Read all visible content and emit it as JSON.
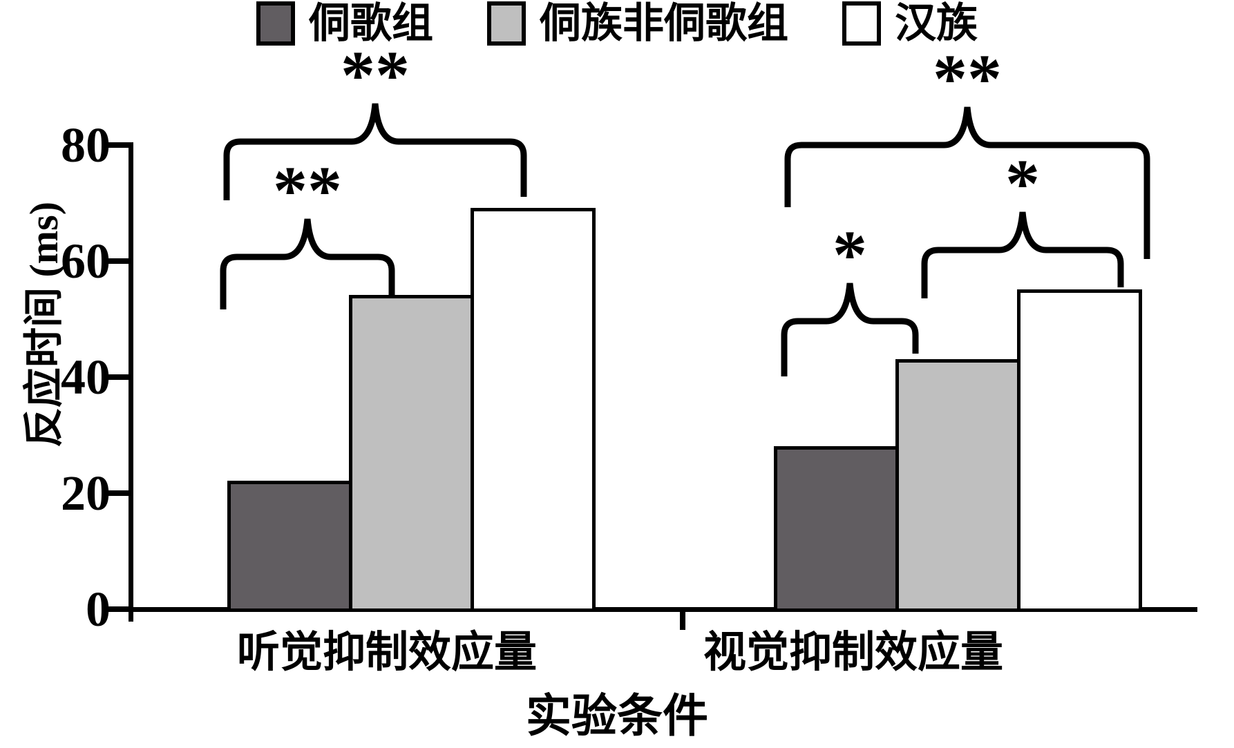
{
  "chart_data": {
    "type": "bar",
    "categories": [
      "听觉抑制效应量",
      "视觉抑制效应量"
    ],
    "series": [
      {
        "name": "侗歌组",
        "color": "#615D61",
        "values": [
          22,
          28
        ]
      },
      {
        "name": "侗族非侗歌组",
        "color": "#BFBFBF",
        "values": [
          54,
          43
        ]
      },
      {
        "name": "汉族",
        "color": "#FFFFFF",
        "values": [
          69,
          55
        ]
      }
    ],
    "xlabel": "实验条件",
    "ylabel": "反应时间 (ms)",
    "ylim": [
      0,
      80
    ],
    "yticks": [
      0,
      20,
      40,
      60,
      80
    ],
    "legend_position": "top",
    "grid": false,
    "significance": [
      {
        "category": "听觉抑制效应量",
        "between": [
          "侗歌组",
          "侗族非侗歌组"
        ],
        "label": "**"
      },
      {
        "category": "听觉抑制效应量",
        "between": [
          "侗歌组",
          "汉族"
        ],
        "label": "**"
      },
      {
        "category": "视觉抑制效应量",
        "between": [
          "侗歌组",
          "侗族非侗歌组"
        ],
        "label": "*"
      },
      {
        "category": "视觉抑制效应量",
        "between": [
          "侗族非侗歌组",
          "汉族"
        ],
        "label": "*"
      },
      {
        "category": "视觉抑制效应量",
        "between": [
          "侗歌组",
          "汉族"
        ],
        "label": "**"
      }
    ]
  }
}
